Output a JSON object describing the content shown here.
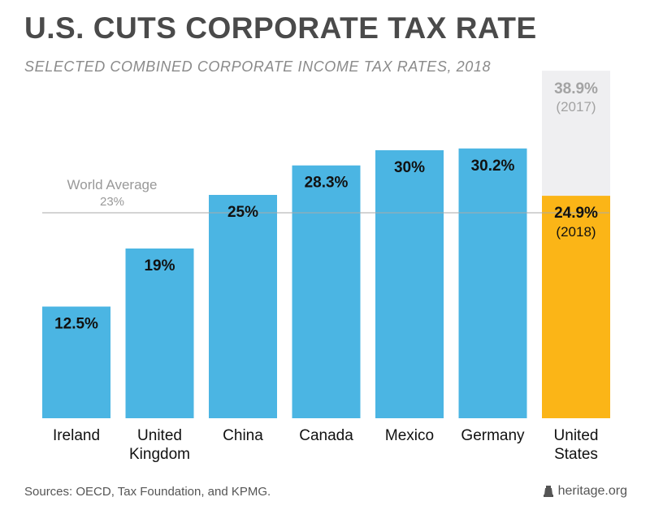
{
  "chart_data": {
    "type": "bar",
    "title": "U.S. CUTS CORPORATE TAX RATE",
    "subtitle": "SELECTED COMBINED CORPORATE INCOME TAX RATES, 2018",
    "categories": [
      [
        "Ireland"
      ],
      [
        "United",
        "Kingdom"
      ],
      [
        "China"
      ],
      [
        "Canada"
      ],
      [
        "Mexico"
      ],
      [
        "Germany"
      ],
      [
        "United",
        "States"
      ]
    ],
    "values": [
      12.5,
      19,
      25,
      28.3,
      30,
      30.2,
      24.9
    ],
    "value_labels": [
      "12.5%",
      "19%",
      "25%",
      "28.3%",
      "30%",
      "30.2%",
      "24.9%"
    ],
    "highlight": {
      "category_index": 6,
      "value_label_year": "(2018)",
      "previous_value": 38.9,
      "previous_label": "38.9%",
      "previous_label_year": "(2017)"
    },
    "reference_line": {
      "label": "World Average",
      "value": 23,
      "value_label": "23%"
    },
    "ylim": [
      0,
      40
    ],
    "grid": false,
    "colors": {
      "bar": "#4bb5e3",
      "highlight_bar": "#fbb517",
      "previous_bar": "#efeff1",
      "reference_line": "#aaaaaa",
      "reference_text": "#999999",
      "previous_text": "#a3a3a3"
    }
  },
  "footer": {
    "sources": "Sources: OECD, Tax Foundation, and KPMG.",
    "brand": "heritage.org",
    "brand_icon": "heritage-bell-icon"
  }
}
